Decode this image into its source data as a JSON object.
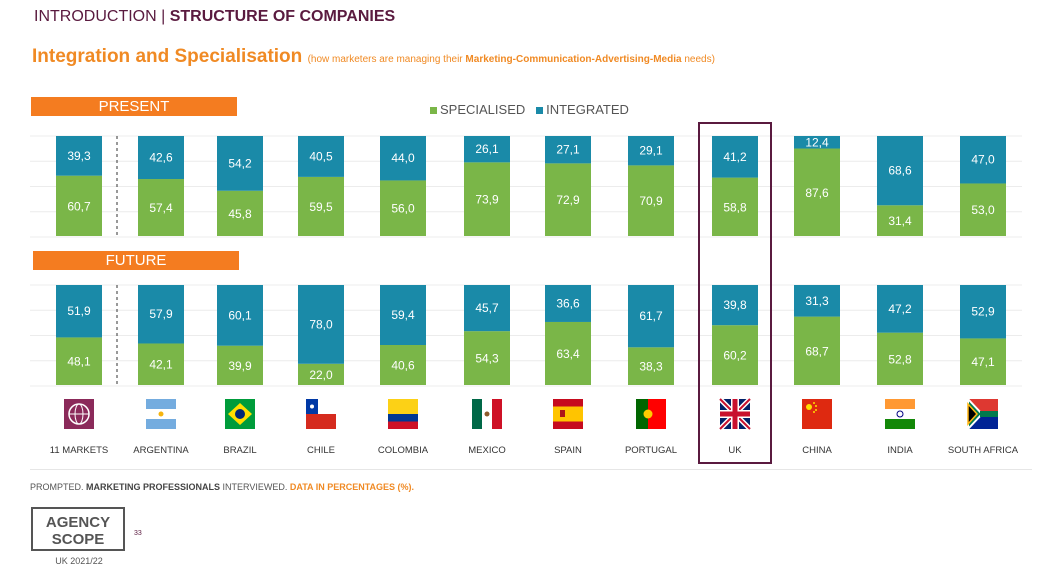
{
  "header": {
    "section": "INTRODUCTION",
    "separator": " | ",
    "topic": "STRUCTURE OF COMPANIES"
  },
  "title": {
    "main": "Integration and Specialisation",
    "sub_pre": "(how marketers are managing their ",
    "sub_bold": "Marketing-Communication-Advertising-Media",
    "sub_post": " needs)"
  },
  "colors": {
    "specialised": "#7ab648",
    "integrated": "#1a8aa8",
    "accent": "#f47c20",
    "highlight": "#5a1a3f"
  },
  "chart_data": {
    "type": "bar",
    "stacked": true,
    "unit": "%",
    "legend": [
      "SPECIALISED",
      "INTEGRATED"
    ],
    "legend_position": "top",
    "highlighted_category": "UK",
    "categories": [
      "11 MARKETS",
      "ARGENTINA",
      "BRAZIL",
      "CHILE",
      "COLOMBIA",
      "MEXICO",
      "SPAIN",
      "PORTUGAL",
      "UK",
      "CHINA",
      "INDIA",
      "SOUTH AFRICA"
    ],
    "flags": [
      "globe-icon",
      "argentina-flag-icon",
      "brazil-flag-icon",
      "chile-flag-icon",
      "colombia-flag-icon",
      "mexico-flag-icon",
      "spain-flag-icon",
      "portugal-flag-icon",
      "uk-flag-icon",
      "china-flag-icon",
      "india-flag-icon",
      "south-africa-flag-icon"
    ],
    "panels": [
      {
        "label": "PRESENT",
        "series": [
          {
            "name": "SPECIALISED",
            "values": [
              60.7,
              57.4,
              45.8,
              59.5,
              56.0,
              73.9,
              72.9,
              70.9,
              58.8,
              87.6,
              31.4,
              53.0
            ],
            "labels": [
              "60,7",
              "57,4",
              "45,8",
              "59,5",
              "56,0",
              "73,9",
              "72,9",
              "70,9",
              "58,8",
              "87,6",
              "31,4",
              "53,0"
            ]
          },
          {
            "name": "INTEGRATED",
            "values": [
              39.3,
              42.6,
              54.2,
              40.5,
              44.0,
              26.1,
              27.1,
              29.1,
              41.2,
              12.4,
              68.6,
              47.0
            ],
            "labels": [
              "39,3",
              "42,6",
              "54,2",
              "40,5",
              "44,0",
              "26,1",
              "27,1",
              "29,1",
              "41,2",
              "12,4",
              "68,6",
              "47,0"
            ]
          }
        ]
      },
      {
        "label": "FUTURE",
        "series": [
          {
            "name": "SPECIALISED",
            "values": [
              48.1,
              42.1,
              39.9,
              22.0,
              40.6,
              54.3,
              63.4,
              38.3,
              60.2,
              68.7,
              52.8,
              47.1
            ],
            "labels": [
              "48,1",
              "42,1",
              "39,9",
              "22,0",
              "40,6",
              "54,3",
              "63,4",
              "38,3",
              "60,2",
              "68,7",
              "52,8",
              "47,1"
            ]
          },
          {
            "name": "INTEGRATED",
            "values": [
              51.9,
              57.9,
              60.1,
              78.0,
              59.4,
              45.7,
              36.6,
              61.7,
              39.8,
              31.3,
              47.2,
              52.9
            ],
            "labels": [
              "51,9",
              "57,9",
              "60,1",
              "78,0",
              "59,4",
              "45,7",
              "36,6",
              "61,7",
              "39,8",
              "31,3",
              "47,2",
              "52,9"
            ]
          }
        ]
      }
    ]
  },
  "footer": {
    "p1": "PROMPTED. ",
    "p2": "MARKETING PROFESSIONALS",
    "p3": " INTERVIEWED. ",
    "p4": "DATA IN PERCENTAGES (%)."
  },
  "logo": {
    "line1": "AGENCY",
    "line2": "SCOPE",
    "sub": "UK 2021/22"
  },
  "page_number": "33"
}
